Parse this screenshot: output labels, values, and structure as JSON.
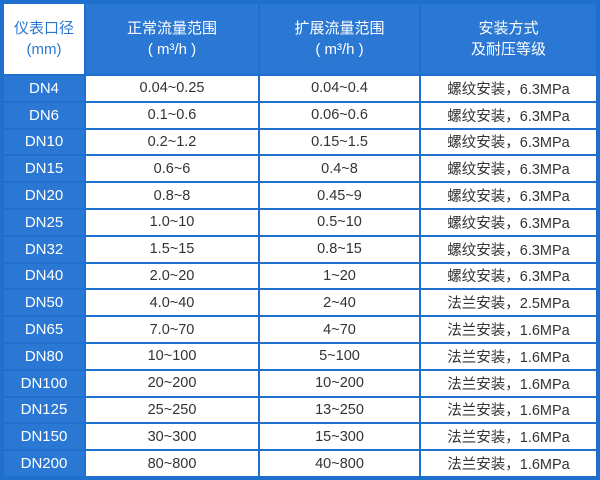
{
  "headers": [
    {
      "line1": "仪表口径",
      "line2": "(mm)"
    },
    {
      "line1": "正常流量范围",
      "line2": "( m³/h )"
    },
    {
      "line1": "扩展流量范围",
      "line2": "( m³/h )"
    },
    {
      "line1": "安装方式",
      "line2": "及耐压等级"
    }
  ],
  "rows": [
    [
      "DN4",
      "0.04~0.25",
      "0.04~0.4",
      "螺纹安装，6.3MPa"
    ],
    [
      "DN6",
      "0.1~0.6",
      "0.06~0.6",
      "螺纹安装，6.3MPa"
    ],
    [
      "DN10",
      "0.2~1.2",
      "0.15~1.5",
      "螺纹安装，6.3MPa"
    ],
    [
      "DN15",
      "0.6~6",
      "0.4~8",
      "螺纹安装，6.3MPa"
    ],
    [
      "DN20",
      "0.8~8",
      "0.45~9",
      "螺纹安装，6.3MPa"
    ],
    [
      "DN25",
      "1.0~10",
      "0.5~10",
      "螺纹安装，6.3MPa"
    ],
    [
      "DN32",
      "1.5~15",
      "0.8~15",
      "螺纹安装，6.3MPa"
    ],
    [
      "DN40",
      "2.0~20",
      "1~20",
      "螺纹安装，6.3MPa"
    ],
    [
      "DN50",
      "4.0~40",
      "2~40",
      "法兰安装，2.5MPa"
    ],
    [
      "DN65",
      "7.0~70",
      "4~70",
      "法兰安装，1.6MPa"
    ],
    [
      "DN80",
      "10~100",
      "5~100",
      "法兰安装，1.6MPa"
    ],
    [
      "DN100",
      "20~200",
      "10~200",
      "法兰安装，1.6MPa"
    ],
    [
      "DN125",
      "25~250",
      "13~250",
      "法兰安装，1.6MPa"
    ],
    [
      "DN150",
      "30~300",
      "15~300",
      "法兰安装，1.6MPa"
    ],
    [
      "DN200",
      "80~800",
      "40~800",
      "法兰安装，1.6MPa"
    ]
  ],
  "colors": {
    "accent": "#2a78d3",
    "border": "#1f6fcf"
  }
}
